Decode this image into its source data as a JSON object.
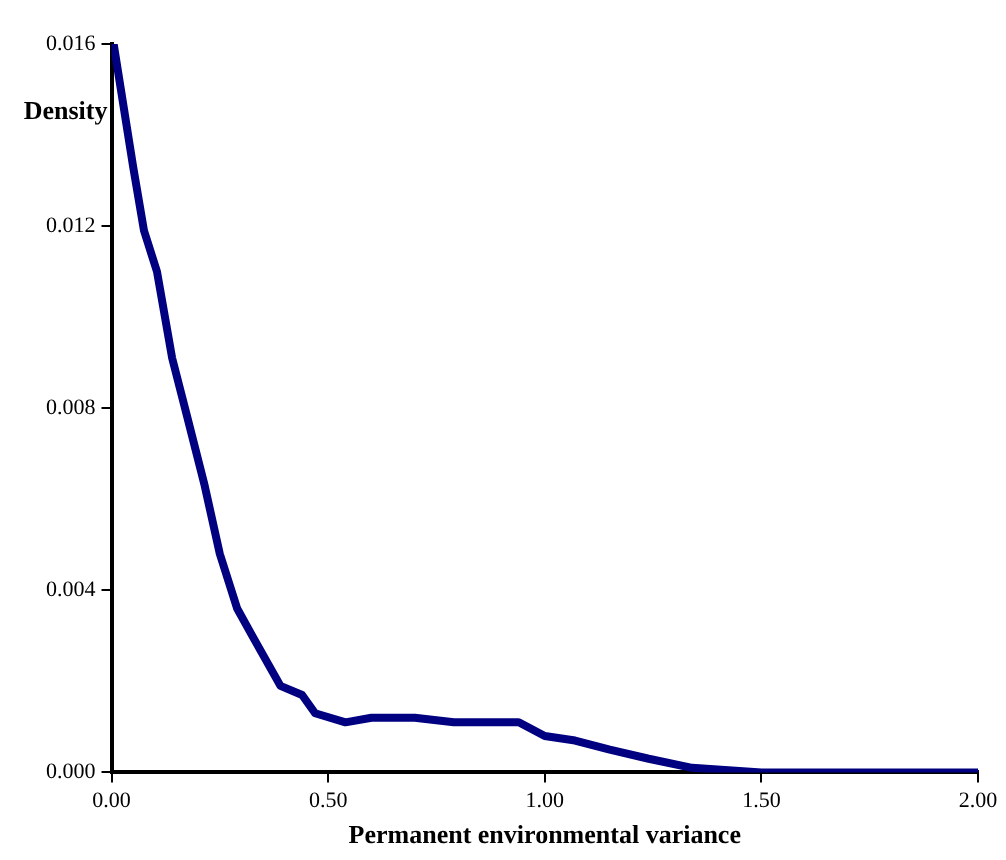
{
  "chart_data": {
    "type": "line",
    "xlabel": "Permanent environmental variance",
    "ylabel": "Density",
    "x": [
      0,
      0.005,
      0.05,
      0.075,
      0.105,
      0.14,
      0.175,
      0.215,
      0.25,
      0.29,
      0.325,
      0.39,
      0.44,
      0.47,
      0.54,
      0.6,
      0.7,
      0.79,
      0.94,
      1.0,
      1.07,
      1.15,
      1.24,
      1.34,
      1.5,
      2.0
    ],
    "series": [
      {
        "color": "#000080",
        "values": [
          0.016,
          0.016,
          0.0133,
          0.0119,
          0.011,
          0.0091,
          0.0078,
          0.0063,
          0.0048,
          0.0036,
          0.003,
          0.0019,
          0.0017,
          0.0013,
          0.0011,
          0.0012,
          0.0012,
          0.0011,
          0.0011,
          0.0008,
          0.0007,
          0.0005,
          0.0003,
          0.0001,
          0,
          0
        ]
      }
    ],
    "xlim": [
      0,
      2
    ],
    "xticks": [
      {
        "value": 0,
        "label": "0.00"
      },
      {
        "value": 0.5,
        "label": "0.50"
      },
      {
        "value": 1,
        "label": "1.00"
      },
      {
        "value": 1.5,
        "label": "1.50"
      },
      {
        "value": 2,
        "label": "2.00"
      }
    ],
    "ylim": [
      0,
      0.016
    ],
    "yticks": [
      {
        "value": 0,
        "label": "0.000"
      },
      0.004,
      0.008,
      0.012,
      0.016
    ],
    "grid": false,
    "legend": false,
    "marker": "none",
    "line_style": "solid"
  }
}
